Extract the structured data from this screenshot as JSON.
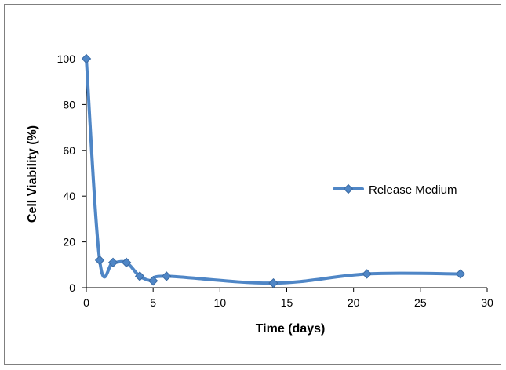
{
  "chart_data": {
    "type": "line",
    "title": "",
    "xlabel": "Time (days)",
    "ylabel": "Cell Viability (%)",
    "xlim": [
      0,
      30
    ],
    "ylim": [
      0,
      100
    ],
    "x_ticks": [
      "0",
      "5",
      "10",
      "15",
      "20",
      "25",
      "30"
    ],
    "y_ticks": [
      "0",
      "20",
      "40",
      "60",
      "80",
      "100"
    ],
    "grid": false,
    "legend_position": "right",
    "series": [
      {
        "name": "Release Medium",
        "color": "#4f86c6",
        "marker": "diamond",
        "x": [
          0,
          1,
          2,
          3,
          4,
          5,
          6,
          14,
          21,
          28
        ],
        "y": [
          100,
          12,
          11,
          11,
          5,
          3,
          5,
          2,
          6,
          6
        ]
      }
    ]
  }
}
